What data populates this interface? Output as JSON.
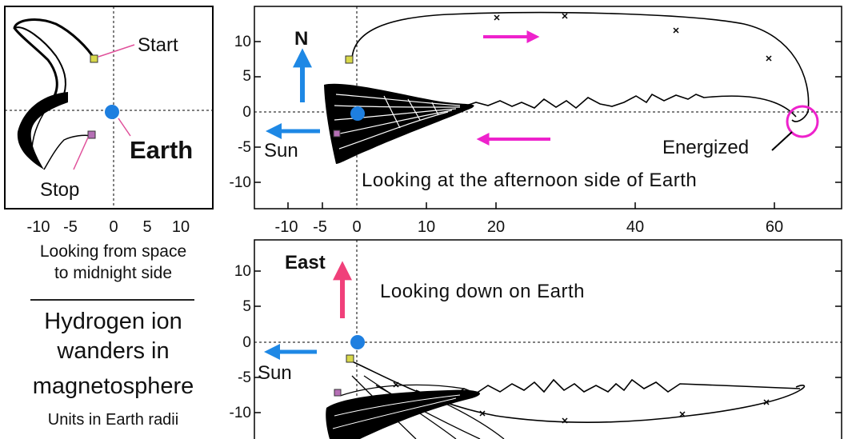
{
  "left_panel": {
    "labels": {
      "start": "Start",
      "stop": "Stop",
      "earth": "Earth"
    },
    "x_ticks": [
      "-10",
      "-5",
      "0",
      "5",
      "10"
    ]
  },
  "top_panel": {
    "y_ticks": [
      "10",
      "5",
      "0",
      "-5",
      "-10"
    ],
    "x_ticks": [
      "-10",
      "-5",
      "0",
      "10",
      "20",
      "40",
      "60"
    ],
    "labels": {
      "north": "N",
      "sun": "Sun",
      "energized": "Energized",
      "caption": "Looking at the afternoon side of Earth"
    }
  },
  "bottom_panel": {
    "y_ticks": [
      "10",
      "5",
      "0",
      "-5",
      "-10"
    ],
    "labels": {
      "east": "East",
      "sun": "Sun",
      "caption": "Looking down on Earth"
    }
  },
  "side_captions": {
    "line1": "Looking from space",
    "line2": "to midnight side",
    "title1": "Hydrogen ion",
    "title2": "wanders in",
    "title3": "magnetosphere",
    "units": "Units in Earth radii"
  },
  "colors": {
    "earth": "#1e7fe0",
    "arrow_blue": "#1e88e5",
    "arrow_magenta": "#ee22cc",
    "arrow_pink": "#f0407a",
    "marker_start": "#d8d84a",
    "marker_stop": "#b56fb5"
  },
  "icons": [
    "earth-dot",
    "north-arrow",
    "sun-arrow",
    "east-arrow",
    "direction-arrow"
  ]
}
